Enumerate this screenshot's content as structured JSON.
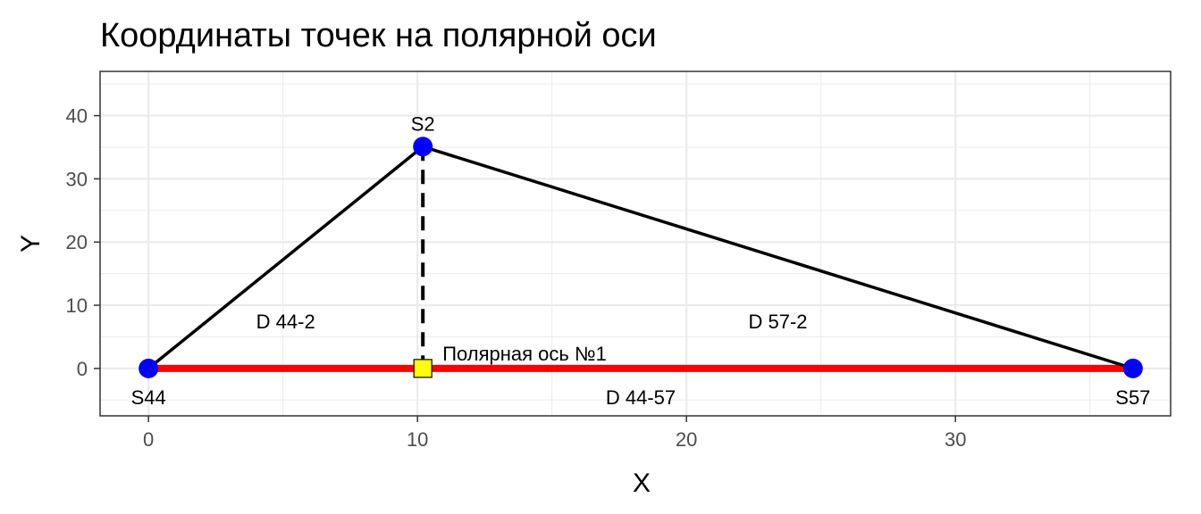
{
  "chart_data": {
    "type": "scatter",
    "title": "Координаты точек на полярной оси",
    "xlabel": "X",
    "ylabel": "Y",
    "xlim": [
      -1.8,
      38.0
    ],
    "ylim": [
      -7.5,
      47.0
    ],
    "xticks": [
      0,
      10,
      20,
      30
    ],
    "yticks": [
      0,
      10,
      20,
      30,
      40
    ],
    "grid": true,
    "colors": {
      "point": "#0000ff",
      "polar_axis": "#ff0000",
      "projection": "#ffff00",
      "line": "#000000",
      "grid": "#ebebeb"
    },
    "points": [
      {
        "label": "S44",
        "x": 0,
        "y": 0
      },
      {
        "label": "S2",
        "x": 10.2,
        "y": 35.1
      },
      {
        "label": "S57",
        "x": 36.6,
        "y": 0
      }
    ],
    "segments": [
      {
        "label": "D 44-2",
        "from": "S44",
        "to": "S2"
      },
      {
        "label": "D 57-2",
        "from": "S57",
        "to": "S2"
      },
      {
        "label": "D 44-57",
        "from": "S44",
        "to": "S57"
      }
    ],
    "projection_point": {
      "label": "Полярная ось №1",
      "x": 10.2,
      "y": 0
    }
  }
}
